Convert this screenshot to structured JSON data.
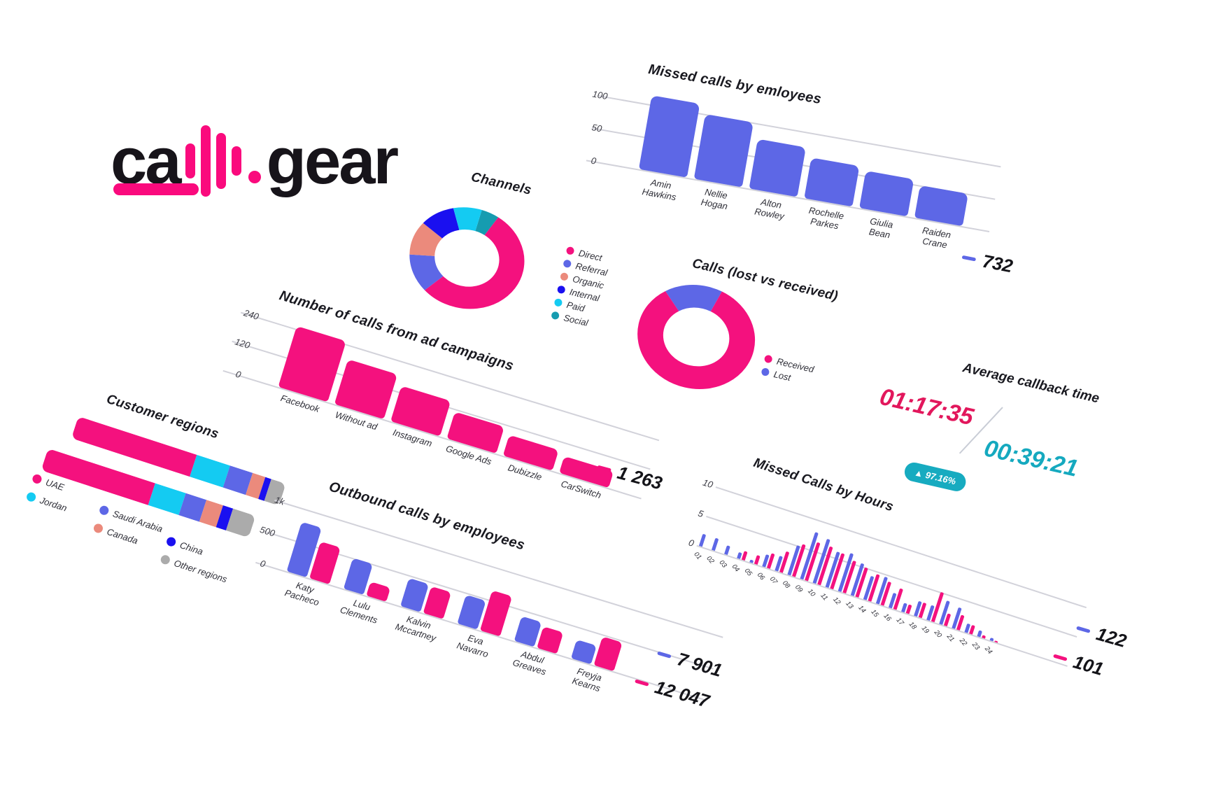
{
  "logo": {
    "part1": "ca",
    "part2": "gear",
    "accent": "#fa0a7d"
  },
  "callback": {
    "title": "Average callback time",
    "time_received": "01:17:35",
    "time_lost": "00:39:21",
    "badge": "▲ 97.16%",
    "received_color": "#e2175c",
    "lost_color": "#15a9bf"
  },
  "palette": {
    "pink": "#f4117e",
    "blue": "#5d67e6",
    "cyan": "#14cbf2",
    "salmon": "#eb8a7c",
    "darkblue": "#1a10f0",
    "teal": "#169cb0",
    "gray": "#ababab"
  },
  "chart_data": [
    {
      "id": "employees",
      "type": "bar",
      "title": "Missed calls by emloyees",
      "categories": [
        "Amin Hawkins",
        "Nellie Hogan",
        "Alton Rowley",
        "Rochelle Parkes",
        "Giulia Bean",
        "Raiden Crane"
      ],
      "values": [
        114,
        100,
        77,
        63,
        57,
        50
      ],
      "yticks": [
        "100",
        "50",
        "0"
      ],
      "ylim": [
        0,
        100
      ],
      "color": "#5d67e6",
      "total": "732",
      "total_color": "#5d67e6"
    },
    {
      "id": "channels",
      "type": "donut",
      "title": "Channels",
      "slices_draw": [
        [
          "Social",
          5
        ],
        [
          "Direct",
          54
        ],
        [
          "Referral",
          12
        ],
        [
          "Organic",
          11
        ],
        [
          "Internal",
          10
        ],
        [
          "Paid",
          8
        ]
      ],
      "legend": [
        "Direct",
        "Referral",
        "Organic",
        "Internal",
        "Paid",
        "Social"
      ],
      "colors": {
        "Direct": "#f4117e",
        "Referral": "#5d67e6",
        "Organic": "#eb8a7c",
        "Internal": "#1a10f0",
        "Paid": "#14cbf2",
        "Social": "#169cb0"
      },
      "start_frac": 0.01
    },
    {
      "id": "campaigns",
      "type": "bar",
      "title": "Number of calls from ad campaigns",
      "categories": [
        "Facebook",
        "Without ad",
        "Instagram",
        "Google Ads",
        "Dubizzle",
        "CarSwitch"
      ],
      "values": [
        250,
        185,
        145,
        110,
        85,
        70
      ],
      "yticks": [
        "240",
        "120",
        "0"
      ],
      "ylim": [
        0,
        240
      ],
      "color": "#f4117e",
      "total": "1 263",
      "total_color": "#f4117e"
    },
    {
      "id": "lost_received",
      "type": "donut",
      "title": "Calls (lost vs received)",
      "slices_draw": [
        [
          "Lost",
          16
        ],
        [
          "Received",
          84
        ]
      ],
      "legend": [
        "Received",
        "Lost"
      ],
      "colors": {
        "Received": "#f4117e",
        "Lost": "#5d67e6"
      },
      "start_frac": -0.12
    },
    {
      "id": "regions",
      "type": "stacked-bar-h",
      "title": "Customer regions",
      "legend": [
        "UAE",
        "Jordan",
        "Saudi Arabia",
        "Canada",
        "China",
        "Other regions"
      ],
      "colors": {
        "UAE": "#f4117e",
        "Jordan": "#14cbf2",
        "Saudi Arabia": "#5d67e6",
        "Canada": "#eb8a7c",
        "China": "#1a10f0",
        "Other regions": "#ababab"
      },
      "bars_pct": [
        [
          57,
          16,
          11,
          6,
          3,
          7
        ],
        [
          52,
          15,
          10,
          8,
          5,
          11
        ]
      ]
    },
    {
      "id": "outbound",
      "type": "grouped-bar",
      "title": "Outbound calls by employees",
      "categories": [
        "Katy Pacheco",
        "Lulu Clements",
        "Kalvin Mccartney",
        "Eva Navarro",
        "Abdul Greaves",
        "Freyja Kearns"
      ],
      "series": [
        {
          "key": "blue",
          "color": "#5d67e6",
          "values": [
            800,
            500,
            450,
            470,
            400,
            300
          ],
          "total": "7 901"
        },
        {
          "key": "pink",
          "color": "#f4117e",
          "values": [
            600,
            230,
            430,
            650,
            350,
            460
          ],
          "total": "12 047"
        }
      ],
      "yticks": [
        "1k",
        "500",
        "0"
      ],
      "ylim": [
        0,
        1000
      ]
    },
    {
      "id": "hours",
      "type": "grouped-bar",
      "title": "Missed Calls by Hours",
      "categories": [
        "01",
        "02",
        "03",
        "04",
        "05",
        "06",
        "07",
        "08",
        "09",
        "10",
        "11",
        "12",
        "13",
        "14",
        "15",
        "16",
        "17",
        "18",
        "19",
        "20",
        "21",
        "22",
        "23",
        "24"
      ],
      "series": [
        {
          "key": "blue",
          "color": "#5d67e6",
          "values": [
            2,
            2,
            1.5,
            1,
            0.5,
            2,
            2.5,
            5,
            8,
            7.5,
            6,
            6.5,
            5.5,
            4,
            4.5,
            2.5,
            1.5,
            2.5,
            2.5,
            4,
            3.5,
            1.5,
            1,
            0.5
          ],
          "total": "122"
        },
        {
          "key": "pink",
          "color": "#f4117e",
          "values": [
            0,
            0,
            0,
            1.5,
            1.5,
            2.5,
            3.5,
            5.5,
            6.5,
            6.5,
            6,
            5.5,
            5,
            4.5,
            4,
            3.5,
            1.5,
            2.5,
            5,
            2,
            2.5,
            1.5,
            0.5,
            0.2
          ],
          "total": "101"
        }
      ],
      "yticks": [
        "10",
        "5",
        "0"
      ],
      "ylim": [
        0,
        10
      ]
    }
  ]
}
